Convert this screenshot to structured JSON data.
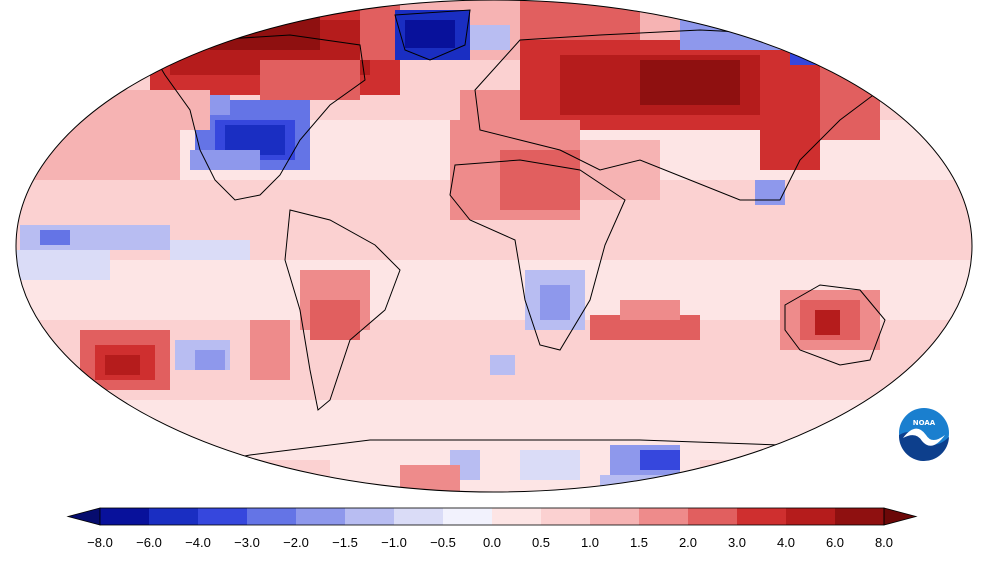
{
  "map": {
    "projection": "robinson",
    "ocean_base_color": "#fde5e5",
    "coastline_color": "#000000",
    "border_color": "#000000"
  },
  "logo": {
    "text": "NOAA",
    "outer_color": "#1a7fcf",
    "inner_color": "#0d3f8c",
    "icon": "noaa-seagull-logo"
  },
  "legend": {
    "ticks": [
      "−8.0",
      "−6.0",
      "−4.0",
      "−3.0",
      "−2.0",
      "−1.5",
      "−1.0",
      "−0.5",
      "0.0",
      "0.5",
      "1.0",
      "1.5",
      "2.0",
      "3.0",
      "4.0",
      "6.0",
      "8.0"
    ],
    "colors": [
      "#08119b",
      "#1a2ec2",
      "#3647dd",
      "#6474e6",
      "#8e98ec",
      "#b8bdf2",
      "#dadcf7",
      "#f2f2fd",
      "#fde5e5",
      "#fbd1d1",
      "#f6b3b3",
      "#ee8b8b",
      "#e15f5f",
      "#cf2f2f",
      "#b51c1c",
      "#8f1010"
    ],
    "low_arrow_color": "#060c6e",
    "high_arrow_color": "#6b0808"
  }
}
